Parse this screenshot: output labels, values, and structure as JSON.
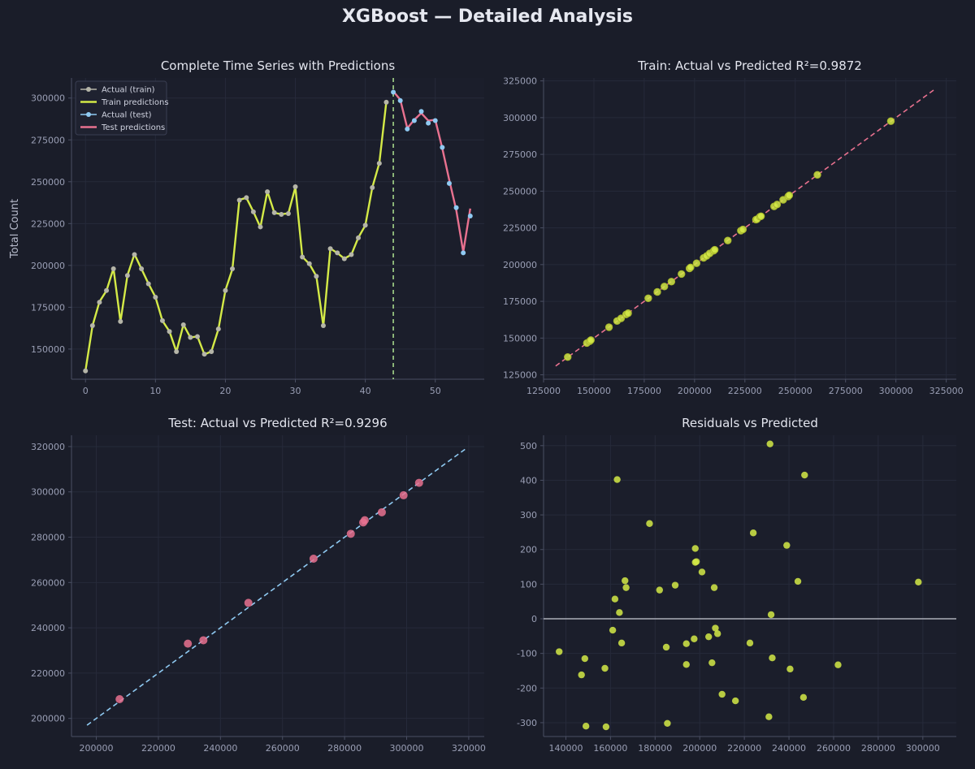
{
  "figure": {
    "title": "XGBoost — Detailed Analysis",
    "colors": {
      "background": "#1a1d29",
      "axes_bg": "#1b1e2b",
      "grid": "#262a3a",
      "spine": "#4a4f63",
      "train": "#d4ea47",
      "actual_train": "#b5b5a8",
      "actual_test": "#8fcaf2",
      "test_pred": "#e8718f",
      "split_line": "#a5d68a",
      "ref_line_train": "#e8718f",
      "ref_line_test": "#8fcaf2",
      "zero_line": "#c8cad4"
    }
  },
  "chart_data": [
    {
      "id": "timeseries",
      "type": "line",
      "title": "Complete Time Series with Predictions",
      "xlabel": "",
      "ylabel": "Total Count",
      "xlim": [
        -2,
        57
      ],
      "ylim": [
        132000,
        312000
      ],
      "xticks": [
        0,
        10,
        20,
        30,
        40,
        50
      ],
      "yticks": [
        150000,
        175000,
        200000,
        225000,
        250000,
        275000,
        300000
      ],
      "grid": true,
      "legend_position": "top-left",
      "split_x": 44,
      "series": [
        {
          "name": "Actual (train)",
          "style": "points",
          "x": [
            0,
            1,
            2,
            3,
            4,
            5,
            6,
            7,
            8,
            9,
            10,
            11,
            12,
            13,
            14,
            15,
            16,
            17,
            18,
            19,
            20,
            21,
            22,
            23,
            24,
            25,
            26,
            27,
            28,
            29,
            30,
            31,
            32,
            33,
            34,
            35,
            36,
            37,
            38,
            39,
            40,
            41,
            42,
            43
          ],
          "y": [
            137000,
            164000,
            178000,
            185000,
            198000,
            166500,
            194000,
            206500,
            198000,
            189000,
            181000,
            167000,
            160500,
            148500,
            164500,
            157000,
            157500,
            147000,
            148500,
            162000,
            185000,
            198000,
            239000,
            240500,
            232000,
            223000,
            244000,
            231500,
            230500,
            231000,
            247000,
            205000,
            201000,
            193500,
            164000,
            210000,
            207500,
            204000,
            206500,
            216500,
            224000,
            246500,
            261000,
            297500
          ]
        },
        {
          "name": "Train predictions",
          "style": "line",
          "x": [
            0,
            1,
            2,
            3,
            4,
            5,
            6,
            7,
            8,
            9,
            10,
            11,
            12,
            13,
            14,
            15,
            16,
            17,
            18,
            19,
            20,
            21,
            22,
            23,
            24,
            25,
            26,
            27,
            28,
            29,
            30,
            31,
            32,
            33,
            34,
            35,
            36,
            37,
            38,
            39,
            40,
            41,
            42,
            43
          ],
          "y": [
            137100,
            163900,
            178300,
            184900,
            198200,
            166400,
            194100,
            206700,
            197900,
            189100,
            181100,
            166900,
            160600,
            148400,
            164600,
            156900,
            157600,
            146800,
            148600,
            161900,
            185100,
            197800,
            239200,
            240400,
            232100,
            222800,
            244200,
            231400,
            230600,
            231100,
            246800,
            205100,
            200900,
            193600,
            163800,
            210100,
            207400,
            204100,
            206400,
            216600,
            223900,
            246600,
            261100,
            297600
          ]
        },
        {
          "name": "Actual (test)",
          "style": "points",
          "x": [
            44,
            45,
            46,
            47,
            48,
            49,
            50,
            51,
            52,
            53,
            54,
            55
          ],
          "y": [
            303500,
            298500,
            281500,
            286500,
            292000,
            285000,
            286500,
            270500,
            249000,
            234500,
            207500,
            229500
          ]
        },
        {
          "name": "Test predictions",
          "style": "line",
          "x": [
            44,
            45,
            46,
            47,
            48,
            49,
            50,
            51,
            52,
            53,
            54,
            55
          ],
          "y": [
            304000,
            299000,
            282000,
            287000,
            291000,
            286500,
            287000,
            270000,
            251000,
            233000,
            208000,
            234000
          ]
        }
      ]
    },
    {
      "id": "train_scatter",
      "type": "scatter",
      "title": "Train: Actual vs Predicted  R²=0.9872",
      "xlabel": "",
      "ylabel": "",
      "xlim": [
        125000,
        330000
      ],
      "ylim": [
        122000,
        327000
      ],
      "xticks": [
        125000,
        150000,
        175000,
        200000,
        225000,
        250000,
        275000,
        300000,
        325000
      ],
      "yticks": [
        125000,
        150000,
        175000,
        200000,
        225000,
        250000,
        275000,
        300000,
        325000
      ],
      "grid": true,
      "ref_line": [
        [
          131000,
          131000
        ],
        [
          320000,
          320000
        ]
      ],
      "points": {
        "x": [
          137000,
          146500,
          148000,
          148500,
          157500,
          161500,
          163500,
          166000,
          167000,
          177000,
          181500,
          185000,
          188500,
          193500,
          197500,
          198000,
          201000,
          204500,
          206000,
          207500,
          209500,
          210000,
          216500,
          223000,
          224000,
          230500,
          231000,
          232500,
          233000,
          239500,
          241000,
          244000,
          246500,
          247000,
          261000,
          297500
        ],
        "y": [
          137100,
          146600,
          147900,
          148600,
          157400,
          161600,
          163400,
          166100,
          166900,
          177100,
          181400,
          185100,
          188400,
          193600,
          197400,
          198100,
          200900,
          204600,
          205900,
          207600,
          209400,
          210100,
          216400,
          223100,
          223900,
          230600,
          230900,
          232600,
          232900,
          239600,
          240900,
          244100,
          246400,
          247100,
          261100,
          297600
        ]
      }
    },
    {
      "id": "test_scatter",
      "type": "scatter",
      "title": "Test: Actual vs Predicted  R²=0.9296",
      "xlabel": "",
      "ylabel": "",
      "xlim": [
        192000,
        325000
      ],
      "ylim": [
        192000,
        325000
      ],
      "xticks": [
        200000,
        220000,
        240000,
        260000,
        280000,
        300000,
        320000
      ],
      "yticks": [
        200000,
        220000,
        240000,
        260000,
        280000,
        300000,
        320000
      ],
      "grid": true,
      "ref_line": [
        [
          197000,
          197000
        ],
        [
          319500,
          319500
        ]
      ],
      "points": {
        "x": [
          207500,
          229500,
          234500,
          249000,
          270000,
          282000,
          286000,
          286500,
          292000,
          299000,
          304000
        ],
        "y": [
          208500,
          233000,
          234500,
          251000,
          270500,
          281500,
          286500,
          287500,
          291000,
          298500,
          304000
        ]
      }
    },
    {
      "id": "residuals",
      "type": "scatter",
      "title": "Residuals vs Predicted",
      "xlabel": "",
      "ylabel": "",
      "xlim": [
        130000,
        315000
      ],
      "ylim": [
        -340,
        530
      ],
      "xticks": [
        140000,
        160000,
        180000,
        200000,
        220000,
        240000,
        260000,
        280000,
        300000
      ],
      "yticks": [
        -300,
        -200,
        -100,
        0,
        100,
        200,
        300,
        400,
        500
      ],
      "grid": true,
      "zero_line": true,
      "points": {
        "x": [
          137000,
          147000,
          148500,
          149000,
          157500,
          158000,
          161000,
          162000,
          163000,
          164000,
          165000,
          166500,
          167000,
          177500,
          182000,
          185000,
          185500,
          189000,
          194000,
          194000,
          197500,
          198000,
          198000,
          198500,
          201000,
          204000,
          205500,
          206500,
          207000,
          208000,
          210000,
          216000,
          222500,
          224000,
          231000,
          231500,
          232000,
          232500,
          239000,
          240500,
          244000,
          246500,
          247000,
          262000,
          298000
        ],
        "y": [
          -95,
          -162,
          -115,
          -310,
          -143,
          -312,
          -33,
          57,
          402,
          18,
          -70,
          110,
          90,
          275,
          83,
          -82,
          -302,
          97,
          -132,
          -72,
          -58,
          163,
          203,
          165,
          135,
          -52,
          -127,
          90,
          -27,
          -43,
          -218,
          -237,
          -70,
          248,
          -283,
          505,
          12,
          -113,
          212,
          -145,
          108,
          -227,
          415,
          -133,
          106
        ]
      }
    }
  ]
}
